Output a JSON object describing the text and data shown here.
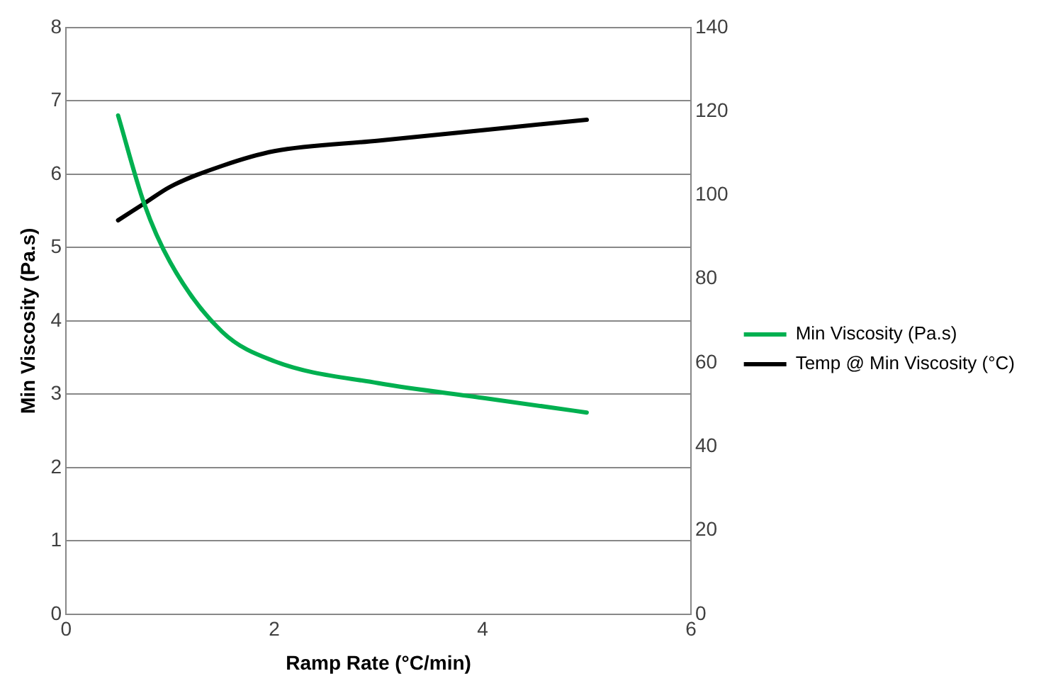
{
  "chart_data": {
    "type": "line",
    "xlabel": "Ramp Rate (°C/min)",
    "ylabel": "Min Viscosity (Pa.s)",
    "xlim": [
      0,
      6
    ],
    "xticks": [
      0,
      2,
      4,
      6
    ],
    "ylim": [
      0,
      8
    ],
    "yticks": [
      0,
      1,
      2,
      3,
      4,
      5,
      6,
      7,
      8
    ],
    "y2lim": [
      0,
      140
    ],
    "y2ticks": [
      0,
      20,
      40,
      60,
      80,
      100,
      120,
      140
    ],
    "x": [
      0.5,
      0.75,
      1,
      1.5,
      2,
      3,
      4,
      5
    ],
    "series": [
      {
        "name": "Min Viscosity (Pa.s)",
        "color": "#00b050",
        "values": [
          6.8,
          5.6,
          4.8,
          3.85,
          3.45,
          3.15,
          2.95,
          2.75
        ]
      },
      {
        "name": "Temp @ Min Viscosity (°C)",
        "color": "#000000",
        "axis": "y2",
        "values": [
          94,
          98,
          102,
          107,
          110.5,
          113,
          115.5,
          118
        ]
      }
    ],
    "grid": "y",
    "legend": "right",
    "marker": "none",
    "line_style": "solid"
  }
}
